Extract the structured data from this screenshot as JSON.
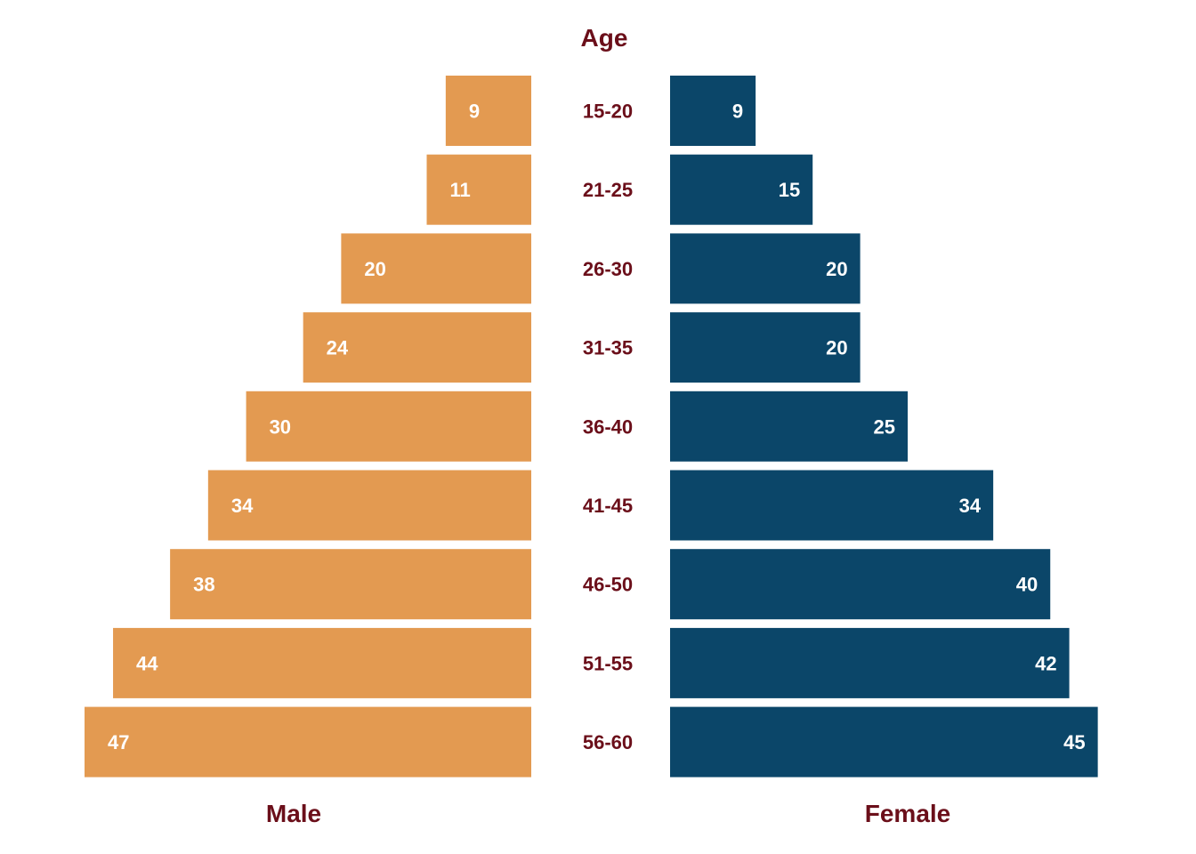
{
  "chart_data": {
    "type": "bar",
    "title": "Age",
    "categories": [
      "15-20",
      "21-25",
      "26-30",
      "31-35",
      "36-40",
      "41-45",
      "46-50",
      "51-55",
      "56-60"
    ],
    "series": [
      {
        "name": "Male",
        "values": [
          9,
          11,
          20,
          24,
          30,
          34,
          38,
          44,
          47
        ],
        "color": "#e39a51",
        "side": "left"
      },
      {
        "name": "Female",
        "values": [
          9,
          15,
          20,
          20,
          25,
          34,
          40,
          42,
          45
        ],
        "color": "#0b4669",
        "side": "right"
      }
    ],
    "xlim": [
      0,
      47
    ],
    "label_color": "#6b0f1a",
    "value_label_color": "#ffffff",
    "legend": "none",
    "grid": false
  }
}
